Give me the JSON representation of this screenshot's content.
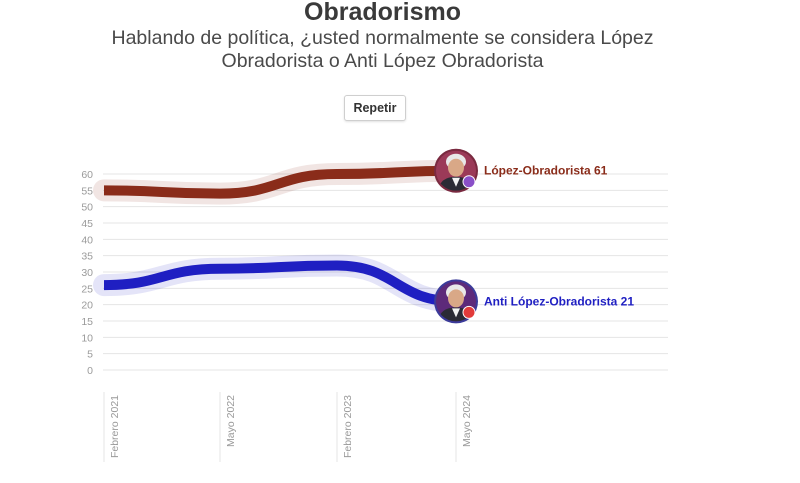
{
  "header": {
    "title": "Obradorismo",
    "subtitle_line1": "Hablando de política, ¿usted normalmente se considera López",
    "subtitle_line2": "Obradorista o Anti López Obradorista"
  },
  "controls": {
    "repeat_label": "Repetir"
  },
  "chart_data": {
    "type": "line",
    "title": "Obradorismo",
    "x": [
      "Febrero 2021",
      "Mayo 2022",
      "Febrero 2023",
      "Mayo 2024"
    ],
    "xlabel": "",
    "ylabel": "",
    "ylim": [
      0,
      60
    ],
    "yticks": [
      0,
      5,
      10,
      15,
      20,
      25,
      30,
      35,
      40,
      45,
      50,
      55,
      60
    ],
    "grid": true,
    "series": [
      {
        "label": "López-Obradorista 61",
        "values": [
          55,
          54,
          60,
          61
        ],
        "color": "#8a2c1a",
        "marker_icon": "portrait-icon"
      },
      {
        "label": "Anti López-Obradorista 21",
        "values": [
          26,
          31,
          32,
          21
        ],
        "color": "#1f1fc2",
        "marker_icon": "portrait-icon"
      }
    ]
  }
}
